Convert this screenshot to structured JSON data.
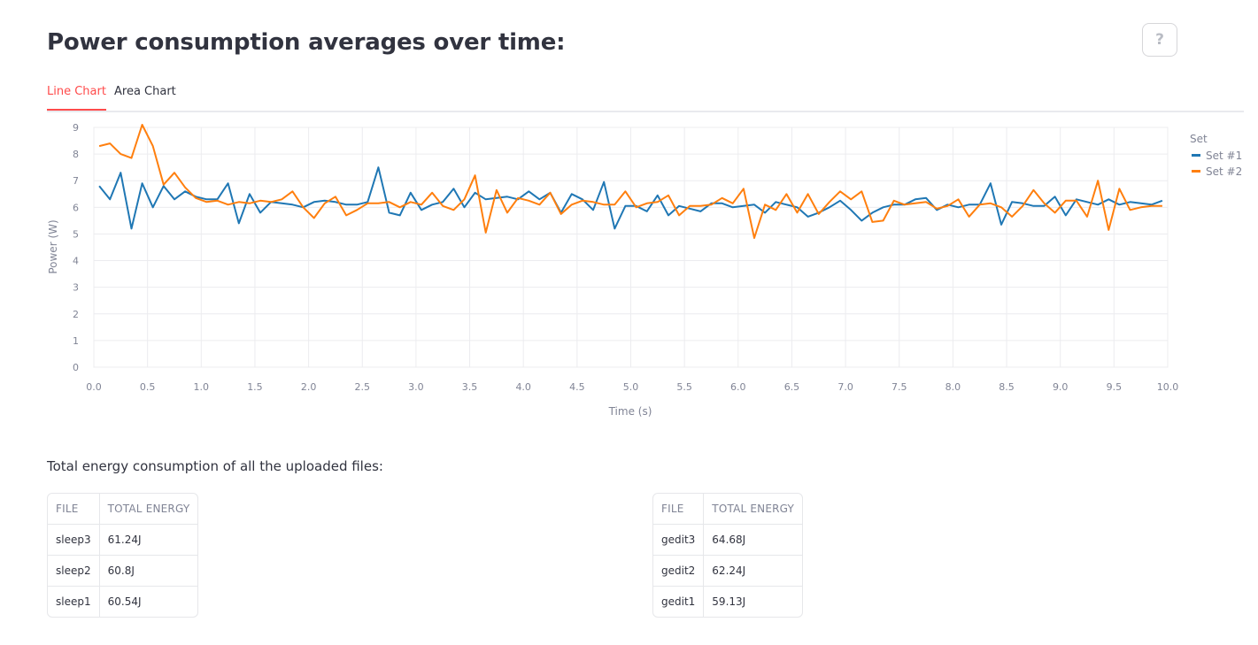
{
  "page": {
    "title": "Power consumption averages over time:",
    "help_label": "?"
  },
  "tabs": [
    {
      "label": "Line Chart",
      "active": true
    },
    {
      "label": "Area Chart",
      "active": false
    }
  ],
  "chart_data": {
    "type": "line",
    "xlabel": "Time (s)",
    "ylabel": "Power (W)",
    "xlim": [
      0,
      10
    ],
    "ylim": [
      0,
      9
    ],
    "xticks": [
      0.0,
      0.5,
      1.0,
      1.5,
      2.0,
      2.5,
      3.0,
      3.5,
      4.0,
      4.5,
      5.0,
      5.5,
      6.0,
      6.5,
      7.0,
      7.5,
      8.0,
      8.5,
      9.0,
      9.5,
      10.0
    ],
    "yticks": [
      0,
      1,
      2,
      3,
      4,
      5,
      6,
      7,
      8,
      9
    ],
    "grid": true,
    "legend_title": "Set",
    "legend_position": "right",
    "x": [
      0.05,
      0.15,
      0.25,
      0.35,
      0.45,
      0.55,
      0.65,
      0.75,
      0.85,
      0.95,
      1.05,
      1.15,
      1.25,
      1.35,
      1.45,
      1.55,
      1.65,
      1.75,
      1.85,
      1.95,
      2.05,
      2.15,
      2.25,
      2.35,
      2.45,
      2.55,
      2.65,
      2.75,
      2.85,
      2.95,
      3.05,
      3.15,
      3.25,
      3.35,
      3.45,
      3.55,
      3.65,
      3.75,
      3.85,
      3.95,
      4.05,
      4.15,
      4.25,
      4.35,
      4.45,
      4.55,
      4.65,
      4.75,
      4.85,
      4.95,
      5.05,
      5.15,
      5.25,
      5.35,
      5.45,
      5.55,
      5.65,
      5.75,
      5.85,
      5.95,
      6.05,
      6.15,
      6.25,
      6.35,
      6.45,
      6.55,
      6.65,
      6.75,
      6.85,
      6.95,
      7.05,
      7.15,
      7.25,
      7.35,
      7.45,
      7.55,
      7.65,
      7.75,
      7.85,
      7.95,
      8.05,
      8.15,
      8.25,
      8.35,
      8.45,
      8.55,
      8.65,
      8.75,
      8.85,
      8.95,
      9.05,
      9.15,
      9.25,
      9.35,
      9.45,
      9.55,
      9.65,
      9.75,
      9.85,
      9.95
    ],
    "series": [
      {
        "name": "Set #1",
        "color": "#1f77b4",
        "values": [
          6.8,
          6.3,
          7.3,
          5.2,
          6.9,
          6.0,
          6.8,
          6.3,
          6.6,
          6.4,
          6.3,
          6.3,
          6.9,
          5.4,
          6.5,
          5.8,
          6.2,
          6.15,
          6.1,
          6.0,
          6.2,
          6.25,
          6.2,
          6.1,
          6.1,
          6.2,
          7.5,
          5.8,
          5.7,
          6.55,
          5.9,
          6.1,
          6.2,
          6.7,
          6.0,
          6.55,
          6.3,
          6.35,
          6.4,
          6.3,
          6.6,
          6.3,
          6.55,
          5.8,
          6.5,
          6.3,
          5.9,
          6.95,
          5.2,
          6.05,
          6.05,
          5.85,
          6.45,
          5.7,
          6.05,
          5.95,
          5.85,
          6.15,
          6.15,
          6.0,
          6.05,
          6.1,
          5.8,
          6.2,
          6.1,
          6.0,
          5.65,
          5.8,
          6.0,
          6.25,
          5.9,
          5.5,
          5.8,
          6.0,
          6.1,
          6.1,
          6.3,
          6.35,
          5.9,
          6.1,
          6.0,
          6.1,
          6.1,
          6.9,
          5.35,
          6.2,
          6.15,
          6.05,
          6.05,
          6.4,
          5.7,
          6.3,
          6.2,
          6.1,
          6.3,
          6.1,
          6.2,
          6.15,
          6.1,
          6.25
        ]
      },
      {
        "name": "Set #2",
        "color": "#ff7f0e",
        "values": [
          8.3,
          8.4,
          8.0,
          7.85,
          9.1,
          8.3,
          6.85,
          7.3,
          6.75,
          6.35,
          6.2,
          6.25,
          6.1,
          6.2,
          6.15,
          6.25,
          6.2,
          6.3,
          6.6,
          6.0,
          5.6,
          6.15,
          6.4,
          5.7,
          5.9,
          6.15,
          6.15,
          6.2,
          6.0,
          6.2,
          6.1,
          6.55,
          6.05,
          5.9,
          6.3,
          7.2,
          5.05,
          6.65,
          5.8,
          6.35,
          6.25,
          6.1,
          6.55,
          5.75,
          6.1,
          6.25,
          6.2,
          6.1,
          6.1,
          6.6,
          6.0,
          6.15,
          6.2,
          6.45,
          5.7,
          6.05,
          6.05,
          6.1,
          6.35,
          6.15,
          6.7,
          4.85,
          6.1,
          5.9,
          6.5,
          5.8,
          6.5,
          5.75,
          6.2,
          6.6,
          6.3,
          6.6,
          5.45,
          5.5,
          6.25,
          6.1,
          6.15,
          6.2,
          5.95,
          6.05,
          6.3,
          5.65,
          6.1,
          6.15,
          6.0,
          5.65,
          6.05,
          6.65,
          6.15,
          5.8,
          6.25,
          6.25,
          5.65,
          7.0,
          5.15,
          6.7,
          5.9,
          6.0,
          6.05,
          6.05
        ]
      }
    ]
  },
  "tables_section": {
    "label": "Total energy consumption of all the uploaded files:",
    "columns": [
      "FILE",
      "TOTAL ENERGY"
    ],
    "left": [
      {
        "file": "sleep3",
        "energy": "61.24J"
      },
      {
        "file": "sleep2",
        "energy": "60.8J"
      },
      {
        "file": "sleep1",
        "energy": "60.54J"
      }
    ],
    "right": [
      {
        "file": "gedit3",
        "energy": "64.68J"
      },
      {
        "file": "gedit2",
        "energy": "62.24J"
      },
      {
        "file": "gedit1",
        "energy": "59.13J"
      }
    ]
  }
}
